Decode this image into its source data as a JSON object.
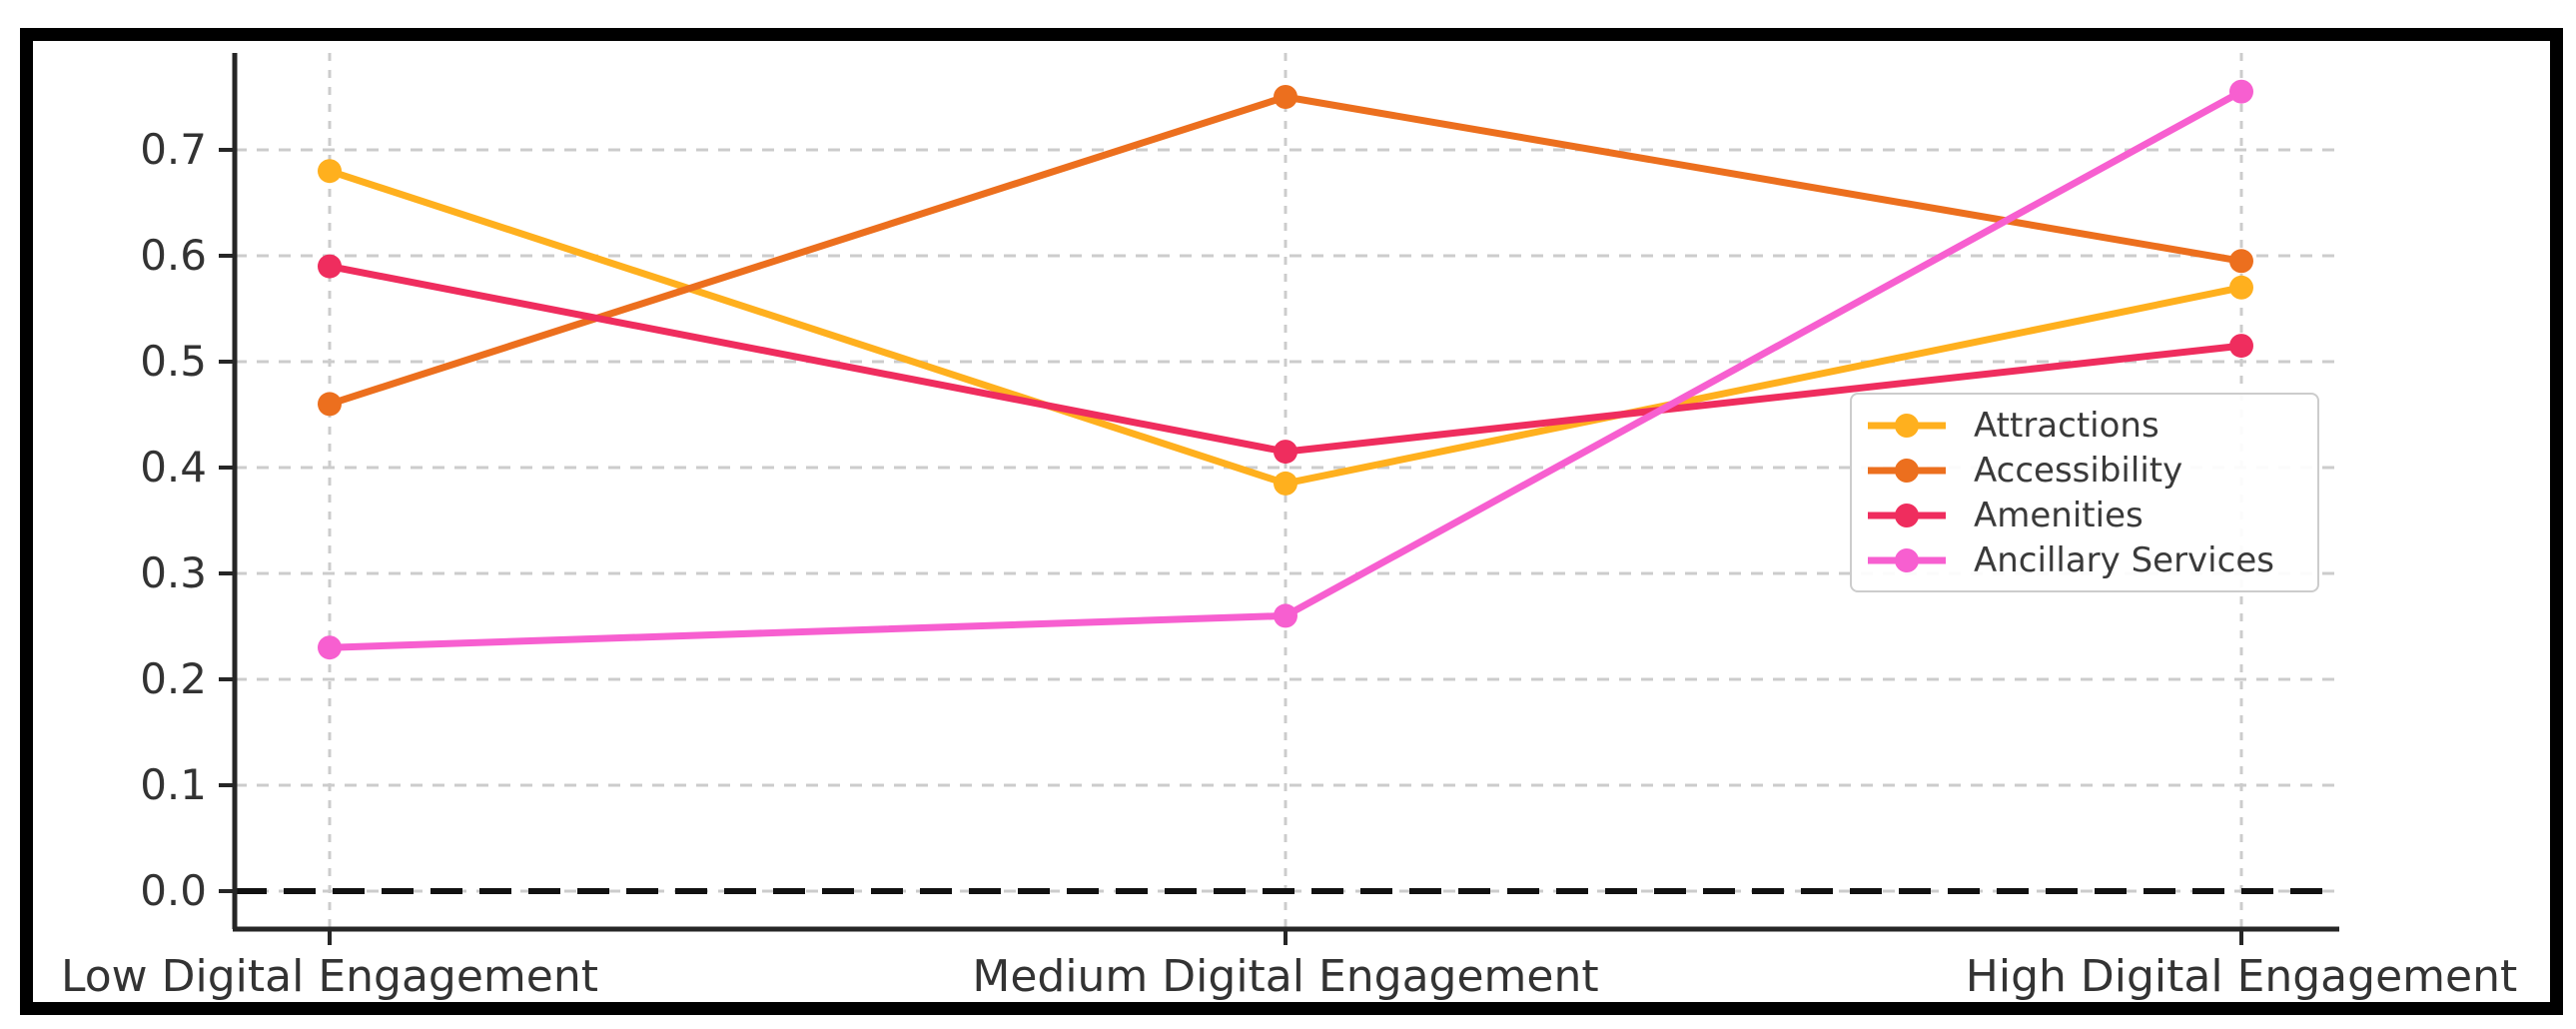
{
  "chart_data": {
    "type": "line",
    "title": "",
    "xlabel": "",
    "ylabel": "",
    "categories": [
      "Low Digital Engagement",
      "Medium Digital Engagement",
      "High Digital Engagement"
    ],
    "series": [
      {
        "name": "Attractions",
        "color": "#FFB01E",
        "values": [
          0.68,
          0.385,
          0.57
        ]
      },
      {
        "name": "Accessibility",
        "color": "#EC6F1E",
        "values": [
          0.46,
          0.75,
          0.595
        ]
      },
      {
        "name": "Amenities",
        "color": "#EF2D5E",
        "values": [
          0.59,
          0.415,
          0.515
        ]
      },
      {
        "name": "Ancillary Services",
        "color": "#F75FD0",
        "values": [
          0.23,
          0.26,
          0.755
        ]
      }
    ],
    "yticks": [
      0.0,
      0.1,
      0.2,
      0.3,
      0.4,
      0.5,
      0.6,
      0.7
    ],
    "ylim": [
      -0.036,
      0.79
    ],
    "grid": true,
    "baseline": {
      "value": 0.0,
      "style": "dashed",
      "color": "#111111"
    },
    "legend_position": "center-right",
    "colors": {
      "axis": "#262626",
      "tick_label": "#333333",
      "gridline": "#cccccc",
      "frame": "#000000"
    }
  }
}
